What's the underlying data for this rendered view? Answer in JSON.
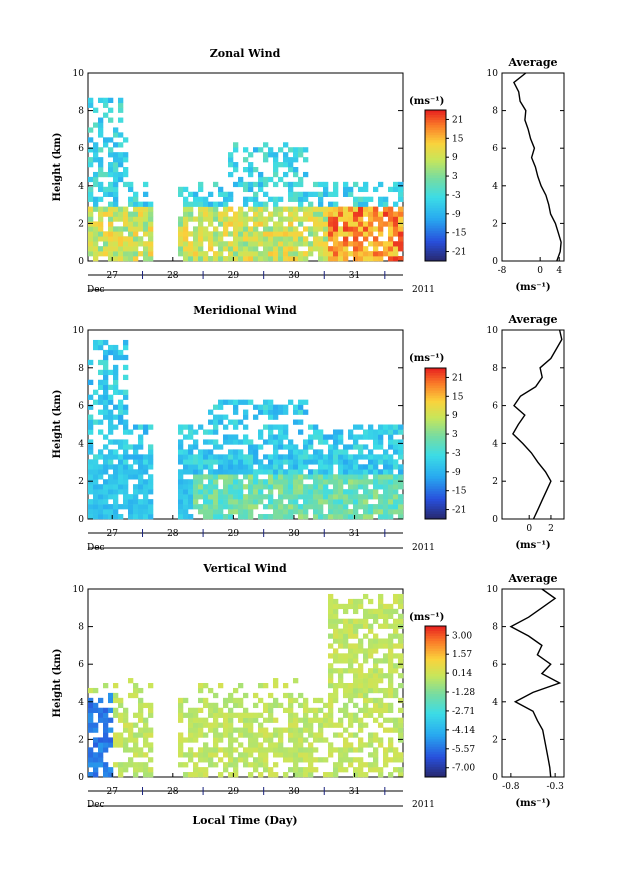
{
  "figure": {
    "x_title": "Local Time (Day)",
    "month": "Dec",
    "year": "2011",
    "day_labels": [
      "27",
      "28",
      "29",
      "30",
      "31"
    ],
    "y_label": "Height (km)",
    "y_ticks": [
      "0",
      "2",
      "4",
      "6",
      "8",
      "10"
    ],
    "unit": "(ms⁻¹)",
    "avg_title": "Average"
  },
  "chart_data": [
    {
      "type": "heatmap",
      "title": "Zonal Wind",
      "xlabel": "Local Time (Day)",
      "ylabel": "Height (km)",
      "x_categories": [
        "27",
        "28",
        "29",
        "30",
        "31"
      ],
      "ylim": [
        0,
        10
      ],
      "colorbar_unit": "(ms⁻¹)",
      "colorbar_ticks": [
        "21",
        "15",
        "9",
        "3",
        "-3",
        "-9",
        "-15",
        "-21"
      ],
      "colorbar_range": [
        -24,
        24
      ],
      "profile": {
        "title": "Average",
        "xlabel": "(ms⁻¹)",
        "x_ticks": [
          "-8",
          "0",
          "4"
        ],
        "xlim": [
          -8,
          5
        ],
        "y": [
          0.0,
          0.5,
          1.0,
          1.5,
          2.0,
          2.5,
          3.0,
          3.5,
          4.0,
          4.5,
          5.0,
          5.5,
          6.0,
          6.5,
          7.0,
          7.5,
          8.0,
          8.5,
          9.0,
          9.5,
          10.0
        ],
        "x": [
          3.5,
          4.2,
          4.4,
          3.8,
          3.2,
          2.2,
          1.8,
          1.2,
          0.2,
          -0.5,
          -1.0,
          -1.8,
          -1.2,
          -2.0,
          -2.5,
          -3.2,
          -3.0,
          -4.2,
          -4.5,
          -5.5,
          -3.0
        ]
      }
    },
    {
      "type": "heatmap",
      "title": "Meridional Wind",
      "xlabel": "Local Time (Day)",
      "ylabel": "Height (km)",
      "x_categories": [
        "27",
        "28",
        "29",
        "30",
        "31"
      ],
      "ylim": [
        0,
        10
      ],
      "colorbar_unit": "(ms⁻¹)",
      "colorbar_ticks": [
        "21",
        "15",
        "9",
        "3",
        "-3",
        "-9",
        "-15",
        "-21"
      ],
      "colorbar_range": [
        -24,
        24
      ],
      "profile": {
        "title": "Average",
        "xlabel": "(ms⁻¹)",
        "x_ticks": [
          "0",
          "2"
        ],
        "xlim": [
          -2.5,
          3.2
        ],
        "y": [
          0.0,
          0.5,
          1.0,
          1.5,
          2.0,
          2.5,
          3.0,
          3.5,
          4.0,
          4.5,
          5.0,
          5.5,
          6.0,
          6.5,
          7.0,
          7.5,
          8.0,
          8.5,
          9.0,
          9.5,
          10.0
        ],
        "x": [
          0.4,
          0.8,
          1.2,
          1.6,
          2.0,
          1.5,
          0.8,
          0.2,
          -0.6,
          -1.5,
          -1.0,
          -0.4,
          -1.4,
          -0.8,
          0.6,
          1.2,
          1.0,
          2.0,
          2.5,
          3.0,
          2.8
        ]
      }
    },
    {
      "type": "heatmap",
      "title": "Vertical Wind",
      "xlabel": "Local Time (Day)",
      "ylabel": "Height (km)",
      "x_categories": [
        "27",
        "28",
        "29",
        "30",
        "31"
      ],
      "ylim": [
        0,
        10
      ],
      "colorbar_unit": "(ms⁻¹)",
      "colorbar_ticks": [
        "3.00",
        "1.57",
        "0.14",
        "-1.28",
        "-2.71",
        "-4.14",
        "-5.57",
        "-7.00"
      ],
      "colorbar_range": [
        -7.7,
        3.7
      ],
      "profile": {
        "title": "Average",
        "xlabel": "(ms⁻¹)",
        "x_ticks": [
          "-0.8",
          "-0.3"
        ],
        "xlim": [
          -0.9,
          -0.2
        ],
        "y": [
          0.0,
          0.5,
          1.0,
          1.5,
          2.0,
          2.5,
          3.0,
          3.5,
          4.0,
          4.5,
          5.0,
          5.5,
          6.0,
          6.5,
          7.0,
          7.5,
          8.0,
          8.5,
          9.0,
          9.5,
          10.0
        ],
        "x": [
          -0.35,
          -0.36,
          -0.38,
          -0.4,
          -0.42,
          -0.44,
          -0.5,
          -0.55,
          -0.75,
          -0.55,
          -0.25,
          -0.45,
          -0.35,
          -0.5,
          -0.45,
          -0.6,
          -0.8,
          -0.6,
          -0.45,
          -0.3,
          -0.45
        ]
      }
    }
  ]
}
